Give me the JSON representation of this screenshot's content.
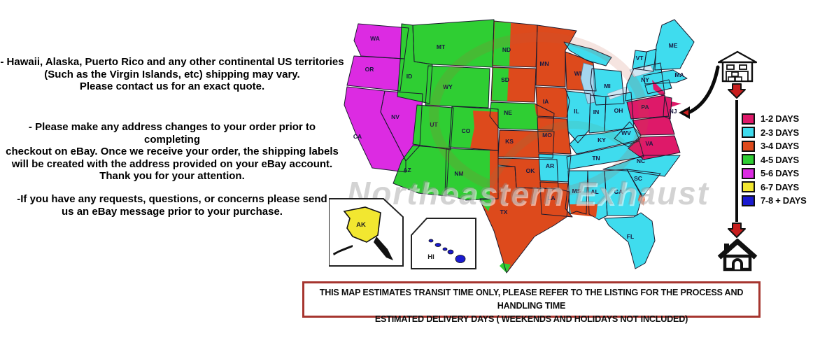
{
  "notes": {
    "paragraph1": "- Hawaii, Alaska, Puerto Rico and any other continental US territories\n(Such as the Virgin Islands, etc) shipping may vary.\nPlease contact us for an exact quote.",
    "paragraph2": "- Please make any address changes to your order prior to completing\ncheckout on eBay. Once we receive your order, the shipping labels\nwill be created with the address provided on your eBay account.\nThank you for your attention.",
    "paragraph3": "-If you have any requests, questions, or concerns please send\nus an eBay message prior to your purchase."
  },
  "zones": {
    "1-2": "#DE1969",
    "2-3": "#3FDCEE",
    "3-4": "#DD4A1C",
    "4-5": "#2FCE33",
    "5-6": "#DC2BE2",
    "6-7": "#F2E730",
    "7-8+": "#1A1ACF"
  },
  "legend": {
    "items": [
      {
        "label": "1-2 DAYS",
        "zone": "1-2"
      },
      {
        "label": "2-3 DAYS",
        "zone": "2-3"
      },
      {
        "label": "3-4 DAYS",
        "zone": "3-4"
      },
      {
        "label": "4-5 DAYS",
        "zone": "4-5"
      },
      {
        "label": "5-6 DAYS",
        "zone": "5-6"
      },
      {
        "label": "6-7 DAYS",
        "zone": "6-7"
      },
      {
        "label": "7-8 + DAYS",
        "zone": "7-8+"
      }
    ]
  },
  "map": {
    "watermark": "Northeastern Exhaust",
    "origin_pointer_label": "NJ",
    "states": [
      {
        "id": "WA",
        "label": "WA",
        "zone": "5-6"
      },
      {
        "id": "OR",
        "label": "OR",
        "zone": "5-6"
      },
      {
        "id": "CA",
        "label": "CA",
        "zone": "5-6"
      },
      {
        "id": "NV",
        "label": "NV",
        "zone": "5-6"
      },
      {
        "id": "ID",
        "label": "ID",
        "zone": "4-5"
      },
      {
        "id": "MT",
        "label": "MT",
        "zone": "4-5"
      },
      {
        "id": "WY",
        "label": "WY",
        "zone": "4-5"
      },
      {
        "id": "UT",
        "label": "UT",
        "zone": "4-5"
      },
      {
        "id": "AZ",
        "label": "AZ",
        "zone": "4-5"
      },
      {
        "id": "NM",
        "label": "NM",
        "zone": "4-5"
      },
      {
        "id": "CO",
        "label": "CO",
        "zone": "4-5"
      },
      {
        "id": "ND",
        "label": "ND",
        "zone": "3-4"
      },
      {
        "id": "SD",
        "label": "SD",
        "zone": "3-4"
      },
      {
        "id": "NE",
        "label": "NE",
        "zone": "4-5"
      },
      {
        "id": "KS",
        "label": "KS",
        "zone": "3-4"
      },
      {
        "id": "OK",
        "label": "OK",
        "zone": "3-4"
      },
      {
        "id": "TX",
        "label": "TX",
        "zone": "3-4"
      },
      {
        "id": "MN",
        "label": "MN",
        "zone": "3-4"
      },
      {
        "id": "IA",
        "label": "IA",
        "zone": "3-4"
      },
      {
        "id": "MO",
        "label": "MO",
        "zone": "3-4"
      },
      {
        "id": "WI",
        "label": "WI",
        "zone": "3-4"
      },
      {
        "id": "LA",
        "label": "LA",
        "zone": "3-4"
      },
      {
        "id": "AR",
        "label": "AR",
        "zone": "2-3"
      },
      {
        "id": "MS",
        "label": "MS",
        "zone": "2-3"
      },
      {
        "id": "AL",
        "label": "AL",
        "zone": "2-3"
      },
      {
        "id": "GA",
        "label": "GA",
        "zone": "2-3"
      },
      {
        "id": "SC",
        "label": "SC",
        "zone": "2-3"
      },
      {
        "id": "NC",
        "label": "NC",
        "zone": "2-3"
      },
      {
        "id": "FL",
        "label": "FL",
        "zone": "2-3"
      },
      {
        "id": "TN",
        "label": "TN",
        "zone": "2-3"
      },
      {
        "id": "KY",
        "label": "KY",
        "zone": "2-3"
      },
      {
        "id": "IL",
        "label": "IL",
        "zone": "2-3"
      },
      {
        "id": "IN",
        "label": "IN",
        "zone": "2-3"
      },
      {
        "id": "OH",
        "label": "OH",
        "zone": "2-3"
      },
      {
        "id": "MI_UP",
        "label": "",
        "zone": "2-3"
      },
      {
        "id": "MI",
        "label": "MI",
        "zone": "2-3"
      },
      {
        "id": "WV",
        "label": "WV",
        "zone": "2-3"
      },
      {
        "id": "NY",
        "label": "NY",
        "zone": "2-3"
      },
      {
        "id": "VT",
        "label": "VT",
        "zone": "2-3"
      },
      {
        "id": "NH",
        "label": "",
        "zone": "2-3"
      },
      {
        "id": "ME",
        "label": "ME",
        "zone": "2-3"
      },
      {
        "id": "MA",
        "label": "MA",
        "zone": "2-3"
      },
      {
        "id": "CT_RI",
        "label": "",
        "zone": "2-3"
      },
      {
        "id": "PA",
        "label": "PA",
        "zone": "1-2"
      },
      {
        "id": "NJ",
        "label": "NJ",
        "zone": "1-2"
      },
      {
        "id": "MD_DE",
        "label": "",
        "zone": "1-2"
      },
      {
        "id": "VA",
        "label": "VA",
        "zone": "1-2"
      }
    ],
    "patches": [
      {
        "id": "ND_w",
        "zone": "4-5"
      },
      {
        "id": "SD_w",
        "zone": "4-5"
      },
      {
        "id": "CO_or",
        "zone": "3-4"
      },
      {
        "id": "NE_e",
        "zone": "3-4"
      },
      {
        "id": "NM_e",
        "zone": "3-4"
      },
      {
        "id": "TX_w",
        "zone": "4-5"
      },
      {
        "id": "TX_s",
        "zone": "4-5"
      },
      {
        "id": "MS_s",
        "zone": "3-4"
      },
      {
        "id": "GA_c",
        "zone": "3-4"
      },
      {
        "id": "NY_se",
        "zone": "1-2"
      },
      {
        "id": "NY_li",
        "zone": "1-2"
      }
    ],
    "insets": [
      {
        "id": "AK",
        "label": "AK",
        "zone": "6-7"
      },
      {
        "id": "HI",
        "label": "HI",
        "zone": "7-8+"
      }
    ]
  },
  "route": {
    "from": "warehouse",
    "to": "house"
  },
  "disclaimer": {
    "line1": "THIS MAP ESTIMATES TRANSIT TIME ONLY, PLEASE REFER TO THE LISTING FOR THE PROCESS AND HANDLING TIME",
    "line2": "ESTIMATED DELIVERY DAYS ( WEEKENDS AND HOLIDAYS NOT INCLUDED)"
  }
}
